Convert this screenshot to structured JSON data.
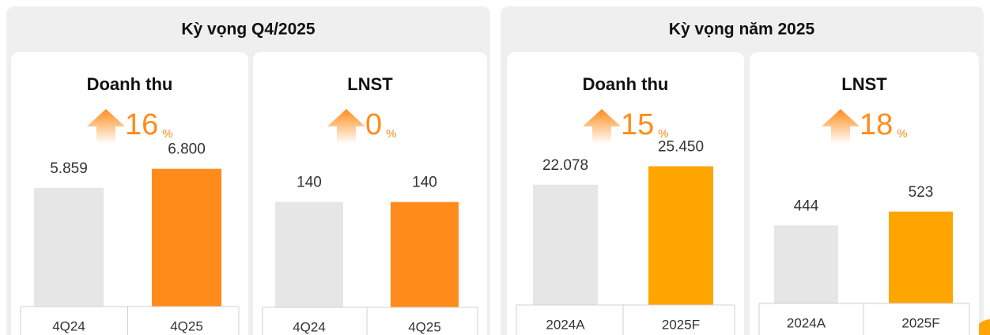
{
  "panels": [
    {
      "title": "Kỳ vọng Q4/2025"
    },
    {
      "title": "Kỳ vọng năm 2025"
    }
  ],
  "chart_data": [
    {
      "type": "bar",
      "title": "Doanh thu",
      "growth": 16,
      "growth_unit": "%",
      "categories": [
        "4Q24",
        "4Q25"
      ],
      "values": [
        5859,
        6800
      ],
      "value_labels": [
        "5.859",
        "6.800"
      ],
      "colors": [
        "#e6e6e6",
        "#ff8c1a"
      ],
      "ylim": [
        0,
        7800
      ]
    },
    {
      "type": "bar",
      "title": "LNST",
      "growth": 0,
      "growth_unit": "%",
      "categories": [
        "4Q24",
        "4Q25"
      ],
      "values": [
        140,
        140
      ],
      "value_labels": [
        "140",
        "140"
      ],
      "colors": [
        "#e6e6e6",
        "#ff8c1a"
      ],
      "ylim": [
        0,
        210
      ]
    },
    {
      "type": "bar",
      "title": "Doanh thu",
      "growth": 15,
      "growth_unit": "%",
      "categories": [
        "2024A",
        "2025F"
      ],
      "values": [
        22078,
        25450
      ],
      "value_labels": [
        "22.078",
        "25.450"
      ],
      "colors": [
        "#e6e6e6",
        "#ffa500"
      ],
      "ylim": [
        0,
        29000
      ]
    },
    {
      "type": "bar",
      "title": "LNST",
      "growth": 18,
      "growth_unit": "%",
      "categories": [
        "2024A",
        "2025F"
      ],
      "values": [
        444,
        523
      ],
      "value_labels": [
        "444",
        "523"
      ],
      "colors": [
        "#e6e6e6",
        "#ffa500"
      ],
      "ylim": [
        0,
        900
      ]
    }
  ]
}
